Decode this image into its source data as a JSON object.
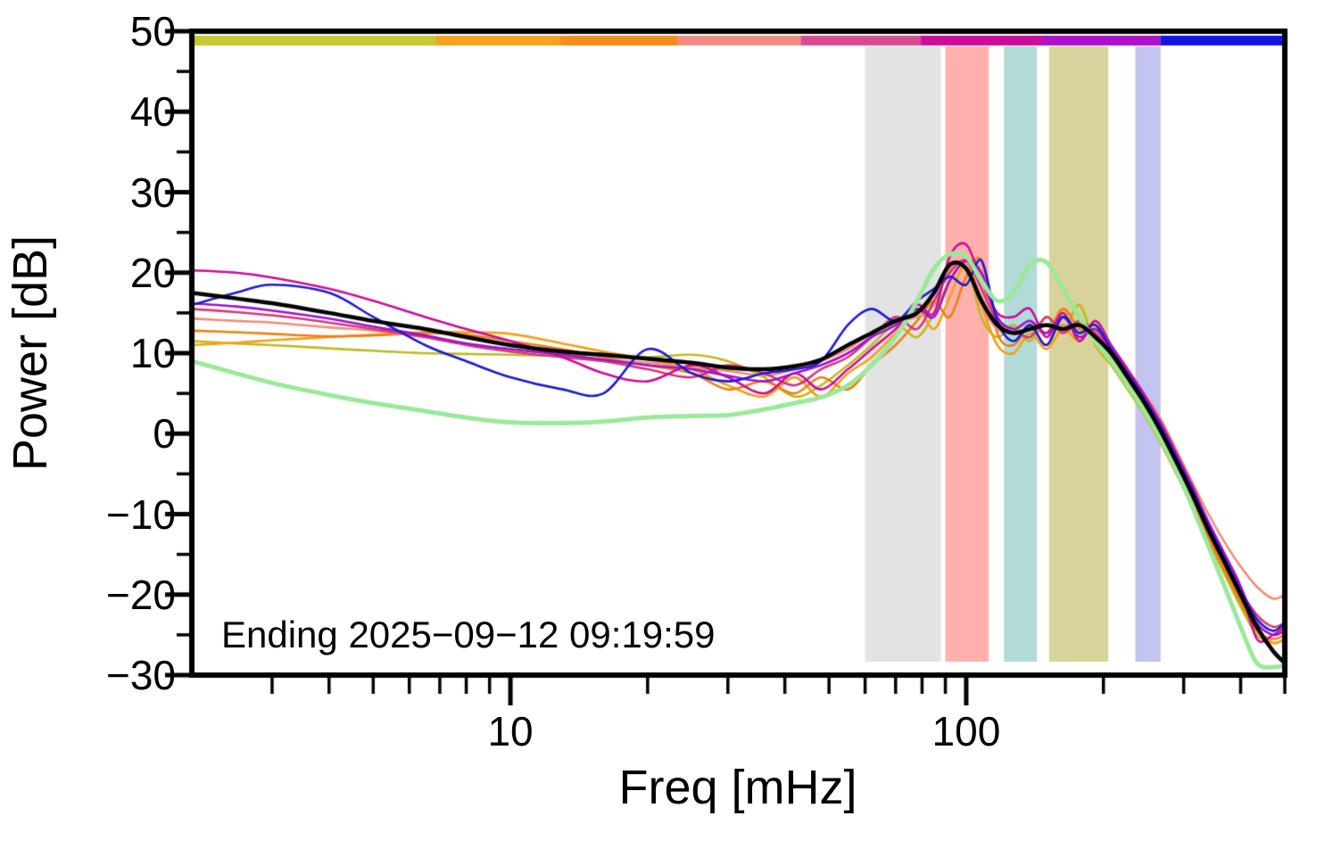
{
  "chart_data": {
    "type": "line",
    "title": "",
    "xlabel": "Freq [mHz]",
    "ylabel": "Power [dB]",
    "annotation": "Ending 2025−09−12 09:19:59",
    "xscale": "log",
    "xlim": [
      2,
      500
    ],
    "ylim": [
      -30,
      50
    ],
    "grid": false,
    "legend": "none",
    "yticks": [
      {
        "value": 50,
        "label": "50"
      },
      {
        "value": 40,
        "label": "40"
      },
      {
        "value": 30,
        "label": "30"
      },
      {
        "value": 20,
        "label": "20"
      },
      {
        "value": 10,
        "label": "10"
      },
      {
        "value": 0,
        "label": "0"
      },
      {
        "value": -10,
        "label": "−10"
      },
      {
        "value": -20,
        "label": "−20"
      },
      {
        "value": -30,
        "label": "−30"
      }
    ],
    "yticks_minor": [
      -25,
      -15,
      -5,
      5,
      15,
      25,
      35,
      45
    ],
    "xticks_major": [
      {
        "value": 10,
        "label": "10"
      },
      {
        "value": 100,
        "label": "100"
      }
    ],
    "xticks_minor": [
      3,
      4,
      5,
      6,
      7,
      8,
      9,
      20,
      30,
      40,
      50,
      60,
      70,
      80,
      90,
      200,
      300,
      400,
      500
    ],
    "bands": [
      {
        "x0": 60,
        "x1": 88,
        "color": "#e3e3e3"
      },
      {
        "x0": 90,
        "x1": 112,
        "color": "#ffb0ac"
      },
      {
        "x0": 121,
        "x1": 143,
        "color": "#b2dbd8"
      },
      {
        "x0": 152,
        "x1": 205,
        "color": "#d8d39a"
      },
      {
        "x0": 235,
        "x1": 267,
        "color": "#c4c4f0"
      }
    ],
    "top_bar_segments": [
      {
        "start": 0.0,
        "end": 0.223,
        "color": "#c6c934"
      },
      {
        "start": 0.223,
        "end": 0.337,
        "color": "#f7a21c"
      },
      {
        "start": 0.337,
        "end": 0.445,
        "color": "#f78c1e"
      },
      {
        "start": 0.445,
        "end": 0.557,
        "color": "#f28c82"
      },
      {
        "start": 0.557,
        "end": 0.667,
        "color": "#d84b93"
      },
      {
        "start": 0.667,
        "end": 0.778,
        "color": "#cc0d9c"
      },
      {
        "start": 0.778,
        "end": 0.886,
        "color": "#ae10cc"
      },
      {
        "start": 0.886,
        "end": 1.0,
        "color": "#1414e6"
      }
    ],
    "frame_color": "#000000",
    "x": [
      2,
      2.5,
      3,
      4,
      5,
      6.5,
      8,
      10,
      13,
      16,
      20,
      25,
      30,
      36,
      42,
      48,
      55,
      62,
      70,
      78,
      85,
      92,
      100,
      108,
      117,
      127,
      138,
      150,
      163,
      177,
      192,
      208,
      226,
      245,
      266,
      289,
      313,
      340,
      369,
      400,
      434,
      471,
      500
    ],
    "series": [
      {
        "name": "spectrum-olive",
        "color": "#c0ba20",
        "width": 2.6,
        "values": [
          11.5,
          11.2,
          11,
          10.6,
          10.3,
          10,
          9.9,
          9.8,
          9.7,
          9.8,
          9.5,
          9.8,
          9,
          7,
          4.6,
          6,
          8.5,
          11,
          13.5,
          12,
          15,
          19,
          21,
          14.5,
          12,
          13.5,
          11.5,
          14.5,
          12.5,
          16,
          11,
          8.5,
          5.5,
          2.5,
          -1,
          -5,
          -9,
          -13.5,
          -17.5,
          -21.5,
          -25,
          -26,
          -25.5
        ]
      },
      {
        "name": "spectrum-orange",
        "color": "#f5a017",
        "width": 2.6,
        "values": [
          11,
          11.3,
          11.6,
          12,
          12.3,
          12.6,
          12.6,
          12.4,
          11.2,
          10.2,
          9.2,
          8,
          6,
          4.6,
          7,
          4.6,
          7.5,
          9.5,
          12.5,
          15.5,
          13,
          17,
          21,
          16,
          11,
          10,
          12.5,
          10.5,
          13,
          11.5,
          13.5,
          9.5,
          6.5,
          3.5,
          0,
          -4,
          -8,
          -12.5,
          -16.5,
          -20.5,
          -24,
          -26,
          -25.5
        ]
      },
      {
        "name": "spectrum-dark-orange",
        "color": "#ee7f10",
        "width": 2.6,
        "values": [
          12.8,
          12.6,
          12.4,
          12.1,
          12.2,
          12.5,
          12.3,
          11.5,
          10.5,
          9.5,
          8.5,
          7.5,
          5.5,
          6.5,
          5,
          7,
          5.5,
          8.5,
          11,
          14,
          16.5,
          14.5,
          19.5,
          21.5,
          12.5,
          11,
          13.5,
          12.5,
          15.5,
          13,
          12,
          9,
          6,
          3,
          -0.5,
          -4.5,
          -8.5,
          -13,
          -17,
          -21,
          -24.5,
          -25.5,
          -25
        ]
      },
      {
        "name": "spectrum-salmon",
        "color": "#f28c78",
        "width": 2.6,
        "values": [
          14.3,
          14,
          13.8,
          13.2,
          12.8,
          12,
          11.2,
          10.5,
          9.8,
          9.2,
          8.8,
          8.2,
          7.8,
          7.2,
          8,
          9,
          10.5,
          12.5,
          14,
          14.5,
          16,
          20.5,
          21,
          16,
          13,
          12.5,
          13,
          12.5,
          13.5,
          12.5,
          12.5,
          10,
          7.5,
          5,
          2,
          -2,
          -6,
          -10,
          -13.5,
          -16.5,
          -19,
          -20.5,
          -20
        ]
      },
      {
        "name": "spectrum-pink",
        "color": "#d23a78",
        "width": 2.6,
        "values": [
          15.5,
          15.1,
          14.7,
          13.8,
          13,
          12,
          11,
          10.2,
          9.5,
          9,
          8,
          7,
          8.5,
          7.5,
          6,
          8,
          9.5,
          12,
          14.5,
          13,
          16.5,
          20,
          21.5,
          18,
          14,
          13,
          12,
          14.5,
          12.5,
          14,
          12.5,
          10.5,
          7.5,
          4.5,
          1,
          -3,
          -7,
          -11.5,
          -15.5,
          -19.5,
          -22.5,
          -24,
          -23.5
        ]
      },
      {
        "name": "spectrum-magenta",
        "color": "#cc0d9c",
        "width": 2.6,
        "values": [
          20.3,
          20,
          19.4,
          18,
          16.5,
          14.5,
          13,
          11.5,
          9.5,
          7.5,
          6.5,
          8.5,
          7,
          5,
          7.5,
          5.5,
          8,
          10.5,
          13,
          16,
          15,
          22,
          23.5,
          19,
          15,
          14.5,
          15.5,
          12,
          15,
          11.5,
          14,
          11,
          8,
          5,
          1.5,
          -2.5,
          -6.5,
          -11,
          -15,
          -19,
          -25.5,
          -25,
          -24
        ]
      },
      {
        "name": "spectrum-purple",
        "color": "#a012cc",
        "width": 2.6,
        "values": [
          16.2,
          15.8,
          15.3,
          14.3,
          13.3,
          12.2,
          11.2,
          10.5,
          9.8,
          9.2,
          8.5,
          8,
          7.2,
          6.5,
          7.5,
          8.5,
          10,
          12,
          13.5,
          15.5,
          14.5,
          19,
          21.5,
          20,
          14.5,
          13,
          14,
          12.5,
          14.5,
          12,
          13,
          10.5,
          7.5,
          4.5,
          1.5,
          -2.5,
          -6.5,
          -11,
          -15,
          -19,
          -23.5,
          -25,
          -24.5
        ]
      },
      {
        "name": "spectrum-blue",
        "color": "#1c1ccd",
        "width": 2.6,
        "values": [
          16,
          17.5,
          18.5,
          17.5,
          14.5,
          11,
          9,
          7,
          5.5,
          5,
          10.5,
          7.5,
          6.5,
          7.5,
          8,
          9,
          13.5,
          15.5,
          14,
          16.5,
          18,
          19.5,
          18.5,
          21.5,
          14,
          11.5,
          13.5,
          11,
          14.5,
          12.5,
          13.5,
          10.5,
          7.5,
          4.5,
          1,
          -3,
          -7,
          -11.5,
          -15.5,
          -19.5,
          -23,
          -24.5,
          -23.5
        ]
      },
      {
        "name": "smoothed-green",
        "color": "#9be89b",
        "width": 5,
        "values": [
          9,
          7.5,
          6.3,
          4.8,
          3.8,
          2.8,
          2,
          1.4,
          1.3,
          1.5,
          2,
          2.2,
          2.3,
          3,
          3.8,
          4.5,
          6,
          8.5,
          12,
          16.5,
          20.5,
          22.3,
          22,
          19,
          16.5,
          17.5,
          21,
          21.3,
          18,
          14.5,
          11.5,
          9,
          6,
          3,
          -0.5,
          -4.5,
          -9,
          -14,
          -19,
          -24,
          -28.5,
          -29,
          -28.8
        ]
      },
      {
        "name": "mean-black",
        "color": "#000000",
        "width": 4.5,
        "values": [
          17.5,
          16.8,
          16.2,
          15,
          14,
          13,
          12,
          11,
          10.2,
          9.8,
          9.3,
          8.8,
          8.2,
          8,
          8.4,
          9.2,
          11,
          12.5,
          14,
          15,
          17.5,
          21,
          20.5,
          16.5,
          13.5,
          12.5,
          13,
          13.5,
          13,
          13.5,
          12,
          10,
          7,
          4,
          0.5,
          -3.5,
          -7.5,
          -12,
          -16,
          -20,
          -24,
          -27,
          -28.5
        ]
      }
    ]
  }
}
